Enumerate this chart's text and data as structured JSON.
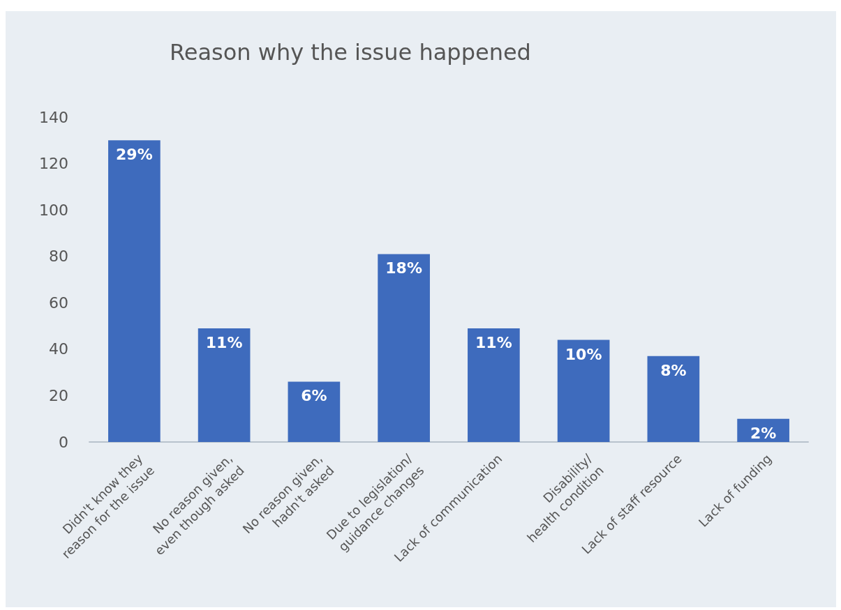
{
  "chart_data": {
    "type": "bar",
    "title": "Reason why the issue happened",
    "categories": [
      "Didn't know they\nreason for the issue",
      "No reason given,\neven though asked",
      "No reason given,\nhadn't asked",
      "Due to legislation/\nguidance changes",
      "Lack of communication",
      "Disability/\nhealth condition",
      "Lack of staff resource",
      "Lack of funding"
    ],
    "values": [
      130,
      49,
      26,
      81,
      49,
      44,
      37,
      10
    ],
    "annotations": [
      {
        "text": "29%",
        "x": "Didn't know they\nreason for the issue",
        "y": 130
      },
      {
        "text": "11%",
        "x": "No reason given,\neven though asked",
        "y": 49
      },
      {
        "text": "6%",
        "x": "No reason given,\nhadn't asked",
        "y": 26
      },
      {
        "text": "18%",
        "x": "Due to legislation/\nguidance changes",
        "y": 81
      },
      {
        "text": "11%",
        "x": "Lack of communication",
        "y": 49
      },
      {
        "text": "10%",
        "x": "Disability/\nhealth condition",
        "y": 44
      },
      {
        "text": "8%",
        "x": "Lack of staff resource",
        "y": 37
      },
      {
        "text": "2%",
        "x": "Lack of funding",
        "y": 10
      }
    ],
    "color": "#3e6bbd",
    "ylim": [
      0,
      140
    ],
    "yticks": [
      0,
      20,
      40,
      60,
      80,
      100,
      120,
      140
    ],
    "grid": false
  }
}
